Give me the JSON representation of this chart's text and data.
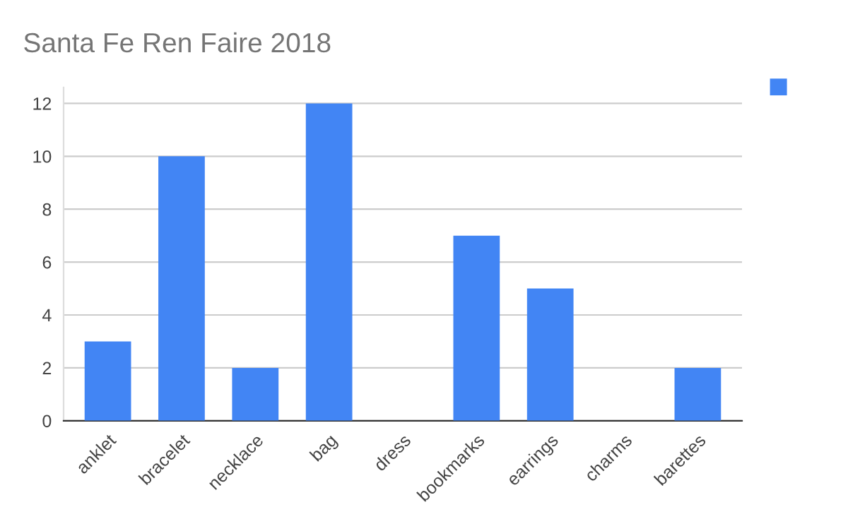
{
  "chart_data": {
    "type": "bar",
    "title": "Santa Fe Ren Faire 2018",
    "categories": [
      "anklet",
      "bracelet",
      "necklace",
      "bag",
      "dress",
      "bookmarks",
      "earrings",
      "charms",
      "barettes"
    ],
    "series": [
      {
        "color": "#4285f4",
        "values": [
          3,
          10,
          2,
          12,
          0,
          7,
          5,
          0,
          2
        ]
      }
    ],
    "ylim": [
      0,
      12.6
    ],
    "yticks": [
      0,
      2,
      4,
      6,
      8,
      10,
      12
    ],
    "grid": "y"
  }
}
